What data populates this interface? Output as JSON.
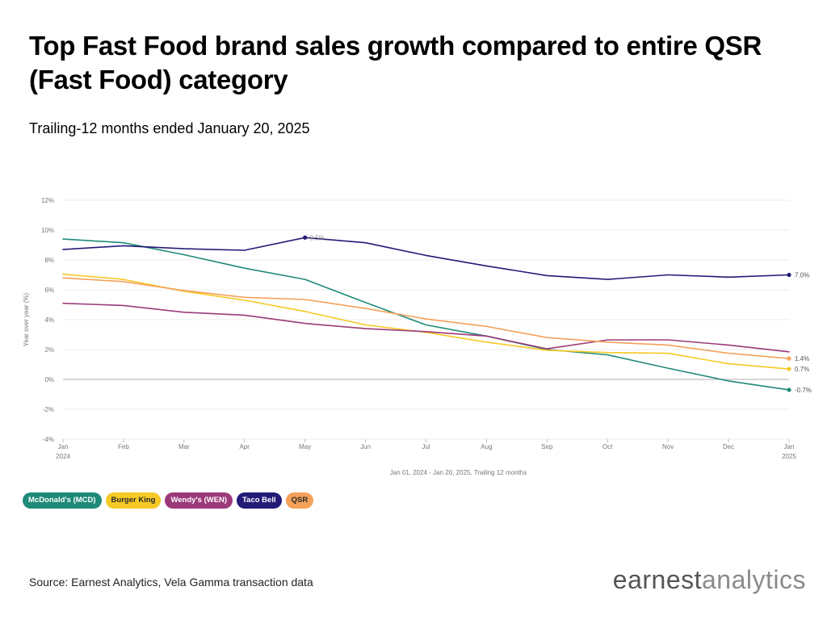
{
  "header": {
    "title": "Top Fast Food brand sales growth compared to entire QSR (Fast Food) category",
    "subtitle": "Trailing-12 months ended January 20, 2025"
  },
  "chart_data": {
    "type": "line",
    "xlabel": "Jan 01, 2024 - Jan 20, 2025, Trailing 12 months",
    "ylabel": "Year over year (%)",
    "ylim": [
      -4,
      12
    ],
    "yticks": [
      -4,
      -2,
      0,
      2,
      4,
      6,
      8,
      10,
      12
    ],
    "ytick_labels": [
      "-4%",
      "-2%",
      "0%",
      "2%",
      "4%",
      "6%",
      "8%",
      "10%",
      "12%"
    ],
    "categories": [
      "Jan",
      "Feb",
      "Mar",
      "Apr",
      "May",
      "Jun",
      "Jul",
      "Aug",
      "Sep",
      "Oct",
      "Nov",
      "Dec",
      "Jan"
    ],
    "year_labels": [
      "2024",
      "",
      "",
      "",
      "",
      "",
      "",
      "",
      "",
      "",
      "",
      "",
      "2025"
    ],
    "grid": "horizontal",
    "legend_position": "bottom-left",
    "series": [
      {
        "name": "McDonald's (MCD)",
        "color": "#1f8a78",
        "values": [
          9.4,
          9.15,
          8.35,
          7.45,
          6.7,
          5.15,
          3.65,
          2.9,
          2.0,
          1.65,
          0.75,
          -0.1,
          -0.7
        ],
        "end_label": "-0.7%"
      },
      {
        "name": "Burger King",
        "color": "#f6c926",
        "values": [
          7.05,
          6.7,
          5.9,
          5.3,
          4.55,
          3.65,
          3.15,
          2.5,
          1.95,
          1.8,
          1.75,
          1.05,
          0.7
        ],
        "end_label": "0.7%"
      },
      {
        "name": "Wendy's (WEN)",
        "color": "#9b3a7a",
        "values": [
          5.1,
          4.95,
          4.5,
          4.3,
          3.75,
          3.4,
          3.2,
          2.9,
          2.05,
          2.65,
          2.65,
          2.3,
          1.85
        ],
        "end_label": ""
      },
      {
        "name": "Taco Bell",
        "color": "#231b77",
        "values": [
          8.7,
          8.95,
          8.75,
          8.65,
          9.5,
          9.15,
          8.3,
          7.6,
          6.95,
          6.7,
          7.0,
          6.85,
          7.0
        ],
        "end_label": "7.0%",
        "annotation": {
          "index": 4,
          "text": "9.5%"
        }
      },
      {
        "name": "QSR",
        "color": "#f4a15a",
        "values": [
          6.8,
          6.55,
          5.95,
          5.5,
          5.35,
          4.75,
          4.05,
          3.55,
          2.8,
          2.5,
          2.3,
          1.75,
          1.4
        ],
        "end_label": "1.4%"
      }
    ]
  },
  "footer": {
    "source": "Source: Earnest Analytics, Vela Gamma transaction data",
    "logo_word_1": "earnest",
    "logo_word_2": "analytics"
  }
}
